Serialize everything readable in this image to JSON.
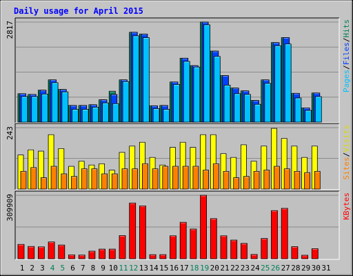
{
  "title": "Daily usage for April 2015",
  "colors": {
    "pages": "#00c0ff",
    "files": "#0040ff",
    "hits": "#00805c",
    "sites": "#ff8000",
    "visits": "#ffff00",
    "kbytes": "#ff0000",
    "title": "#0000ff",
    "weekend_day": "#00805c",
    "weekday": "#000000",
    "panel_bg": "#c0c0c0"
  },
  "chart_data": {
    "type": "bar",
    "title": "Daily usage for April 2015",
    "categories": [
      "1",
      "2",
      "3",
      "4",
      "5",
      "6",
      "7",
      "8",
      "9",
      "10",
      "11",
      "12",
      "13",
      "14",
      "15",
      "16",
      "17",
      "18",
      "19",
      "20",
      "21",
      "22",
      "23",
      "24",
      "25",
      "26",
      "27",
      "28",
      "29",
      "30",
      "31"
    ],
    "weekend_days": [
      "4",
      "5",
      "11",
      "12",
      "18",
      "19",
      "25",
      "26"
    ],
    "panels": [
      {
        "id": "top",
        "ymax_label": "2817",
        "ymax": 2817,
        "legend": [
          "Pages",
          "/",
          "Files",
          "/",
          "Hits"
        ],
        "series": [
          {
            "name": "Hits",
            "values": [
              800,
              780,
              900,
              1190,
              920,
              470,
              470,
              490,
              630,
              870,
              1190,
              2530,
              2480,
              460,
              470,
              1130,
              1800,
              1590,
              2817,
              2000,
              1310,
              960,
              880,
              610,
              1190,
              2240,
              2380,
              810,
              400,
              820,
              0
            ]
          },
          {
            "name": "Files",
            "values": [
              800,
              780,
              900,
              1190,
              920,
              470,
              470,
              490,
              630,
              780,
              1190,
              2530,
              2480,
              460,
              470,
              1130,
              1800,
              1590,
              2817,
              2000,
              1310,
              960,
              880,
              610,
              1190,
              2240,
              2380,
              810,
              400,
              820,
              0
            ]
          },
          {
            "name": "Pages",
            "values": [
              720,
              720,
              790,
              1110,
              850,
              360,
              360,
              420,
              540,
              520,
              1140,
              2430,
              2380,
              380,
              360,
              1060,
              1710,
              1550,
              2740,
              1850,
              1040,
              800,
              780,
              500,
              1090,
              2150,
              2200,
              680,
              330,
              720,
              0
            ]
          }
        ]
      },
      {
        "id": "middle",
        "ymax_label": "243",
        "ymax": 243,
        "legend": [
          "Sites",
          "/",
          "Visits"
        ],
        "series": [
          {
            "name": "Visits",
            "values": [
              135,
              155,
              150,
              215,
              160,
              90,
              110,
              95,
              100,
              75,
              145,
              170,
              185,
              125,
              95,
              165,
              185,
              165,
              215,
              215,
              140,
              125,
              175,
              110,
              170,
              240,
              200,
              170,
              125,
              170,
              0
            ]
          },
          {
            "name": "Sites",
            "values": [
              70,
              85,
              45,
              90,
              60,
              50,
              80,
              80,
              60,
              60,
              80,
              80,
              100,
              80,
              90,
              90,
              90,
              90,
              75,
              100,
              70,
              45,
              50,
              70,
              75,
              90,
              80,
              70,
              65,
              70,
              0
            ]
          }
        ]
      },
      {
        "id": "bottom",
        "ymax_label": "309909",
        "ymax": 309909,
        "legend": [
          "KBytes"
        ],
        "series": [
          {
            "name": "KBytes",
            "values": [
              70000,
              60000,
              58000,
              82000,
              67000,
              19000,
              18000,
              37000,
              47000,
              47000,
              113000,
              272000,
              258000,
              20000,
              20000,
              112000,
              178000,
              145000,
              309909,
              196000,
              112000,
              91000,
              75000,
              21000,
              99000,
              235000,
              246000,
              59000,
              17000,
              49000,
              0
            ]
          }
        ]
      }
    ]
  }
}
